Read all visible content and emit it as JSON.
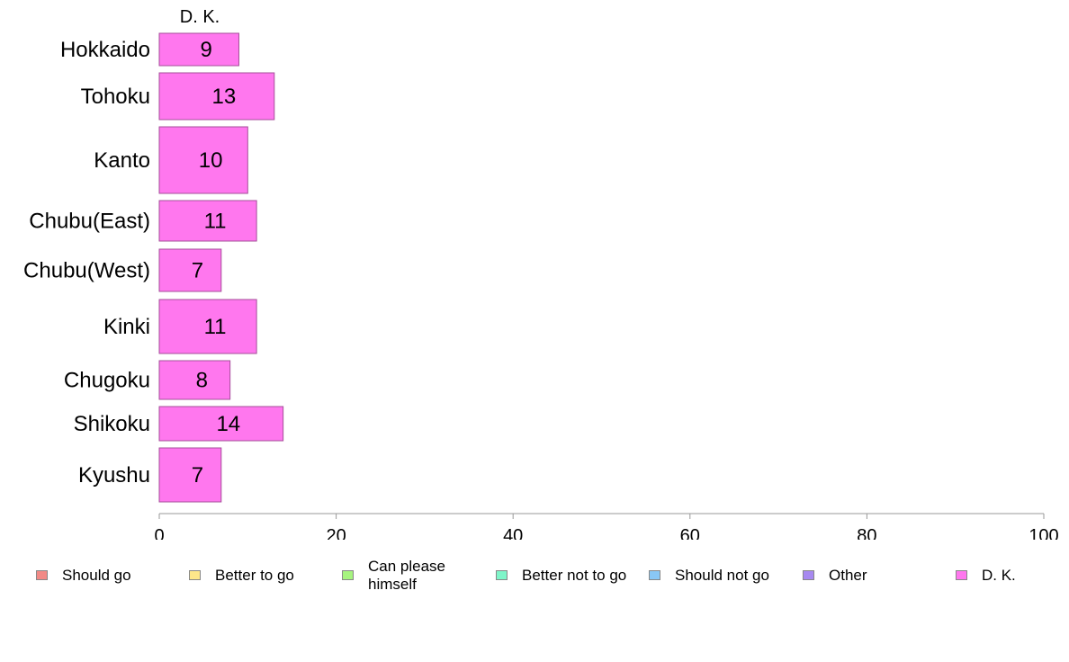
{
  "chart_data": {
    "type": "bar",
    "orientation": "horizontal",
    "panel_title": "D. K.",
    "categories": [
      "Hokkaido",
      "Tohoku",
      "Kanto",
      "Chubu(East)",
      "Chubu(West)",
      "Kinki",
      "Chugoku",
      "Shikoku",
      "Kyushu"
    ],
    "series": [
      {
        "name": "D. K.",
        "values": [
          9,
          13,
          10,
          11,
          7,
          11,
          8,
          14,
          7
        ],
        "labels": [
          "9",
          "13",
          "10",
          "11",
          "7",
          "11",
          "8",
          "14",
          "7"
        ]
      }
    ],
    "xlim": [
      0,
      100
    ],
    "xticks": [
      "0",
      "20",
      "40",
      "60",
      "80",
      "100"
    ],
    "grid": false,
    "bar_color": "#ff77ee",
    "bar_border": "#a64f9a"
  },
  "legend": {
    "placement": "bottom",
    "items": [
      {
        "label": "Should go",
        "color": "#f28a86"
      },
      {
        "label": "Better to go",
        "color": "#fde78a"
      },
      {
        "label": "Can please himself",
        "color": "#a6f47f"
      },
      {
        "label": "Better not to go",
        "color": "#7ff5c9"
      },
      {
        "label": "Should not go",
        "color": "#89c7f5"
      },
      {
        "label": "Other",
        "color": "#a789f0"
      },
      {
        "label": "D. K.",
        "color": "#ff77ee"
      }
    ]
  }
}
